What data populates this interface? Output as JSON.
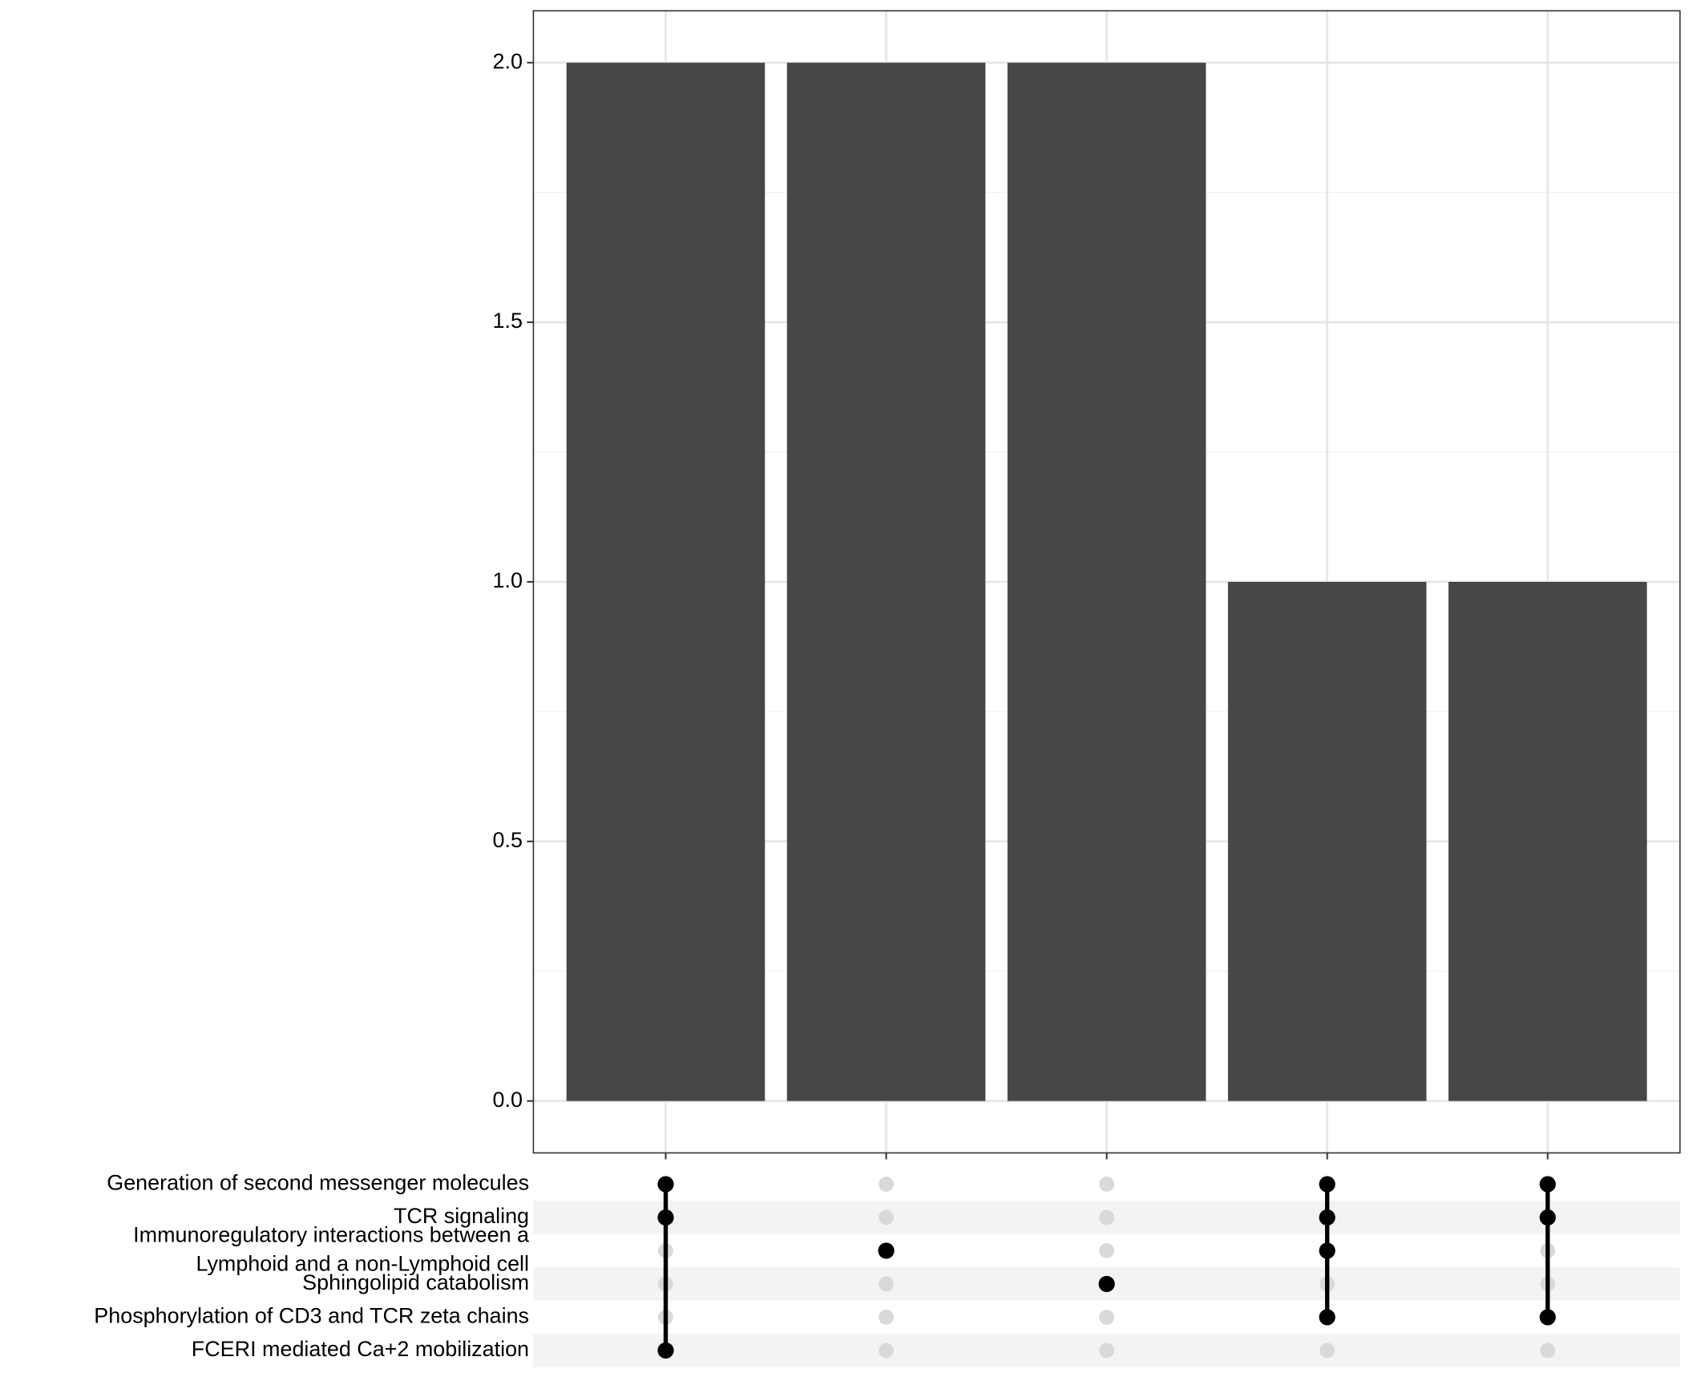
{
  "chart_data": {
    "type": "upset",
    "sets": [
      [
        "Generation of second messenger molecules"
      ],
      [
        "TCR signaling"
      ],
      [
        "Immunoregulatory interactions between a",
        "Lymphoid and a non-Lymphoid cell"
      ],
      [
        "Sphingolipid catabolism"
      ],
      [
        "Phosphorylation of CD3 and TCR zeta chains"
      ],
      [
        "FCERI mediated Ca+2 mobilization"
      ]
    ],
    "values": [
      2,
      2,
      2,
      1,
      1
    ],
    "matrix": [
      [
        1,
        1,
        0,
        0,
        0,
        1
      ],
      [
        0,
        0,
        1,
        0,
        0,
        0
      ],
      [
        0,
        0,
        0,
        1,
        0,
        0
      ],
      [
        1,
        1,
        1,
        0,
        1,
        0
      ],
      [
        1,
        1,
        0,
        0,
        1,
        0
      ]
    ],
    "color": "#474747",
    "ylim": [
      -0.1,
      2.1
    ],
    "yticks": [
      {
        "value": 0,
        "label": "0.0"
      },
      0.5,
      {
        "value": 1,
        "label": "1.0"
      },
      1.5,
      {
        "value": 2,
        "label": "2.0"
      }
    ],
    "yminor": [
      0.25,
      0.75,
      1.25,
      1.75
    ],
    "grid": true
  }
}
